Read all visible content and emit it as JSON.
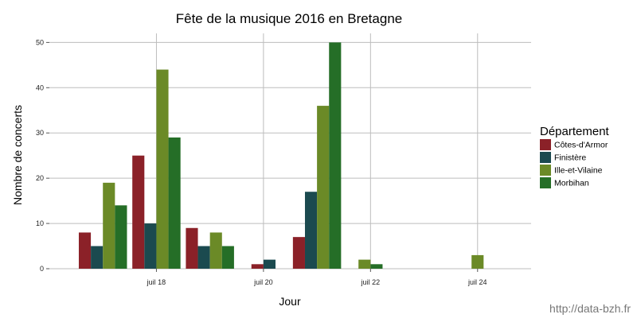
{
  "chart_data": {
    "type": "bar",
    "title": "Fête de la musique 2016 en Bretagne",
    "xlabel": "Jour",
    "ylabel": "Nombre de concerts",
    "x": [
      "2016-07-17",
      "2016-07-18",
      "2016-07-19",
      "2016-07-20",
      "2016-07-21",
      "2016-07-22",
      "2016-07-24"
    ],
    "x_ticks": [
      {
        "date": "2016-07-18",
        "label": "juil 18"
      },
      {
        "date": "2016-07-20",
        "label": "juil 20"
      },
      {
        "date": "2016-07-22",
        "label": "juil 22"
      },
      {
        "date": "2016-07-24",
        "label": "juil 24"
      }
    ],
    "xlim": [
      "2016-07-16",
      "2016-07-25"
    ],
    "ylim": [
      0,
      52
    ],
    "y_ticks": [
      0,
      10,
      20,
      30,
      40,
      50
    ],
    "grid": true,
    "legend_title": "Département",
    "legend_position": "right",
    "series": [
      {
        "name": "Côtes-d'Armor",
        "color": "#8b2128",
        "values": [
          8,
          25,
          9,
          1,
          7,
          null,
          null
        ]
      },
      {
        "name": "Finistère",
        "color": "#1b4a4f",
        "values": [
          5,
          10,
          5,
          2,
          17,
          null,
          null
        ]
      },
      {
        "name": "Ille-et-Vilaine",
        "color": "#6b8a27",
        "values": [
          19,
          44,
          8,
          null,
          36,
          2,
          3
        ]
      },
      {
        "name": "Morbihan",
        "color": "#256e27",
        "values": [
          14,
          29,
          5,
          null,
          50,
          1,
          null
        ]
      }
    ]
  },
  "watermark": "http://data-bzh.fr"
}
